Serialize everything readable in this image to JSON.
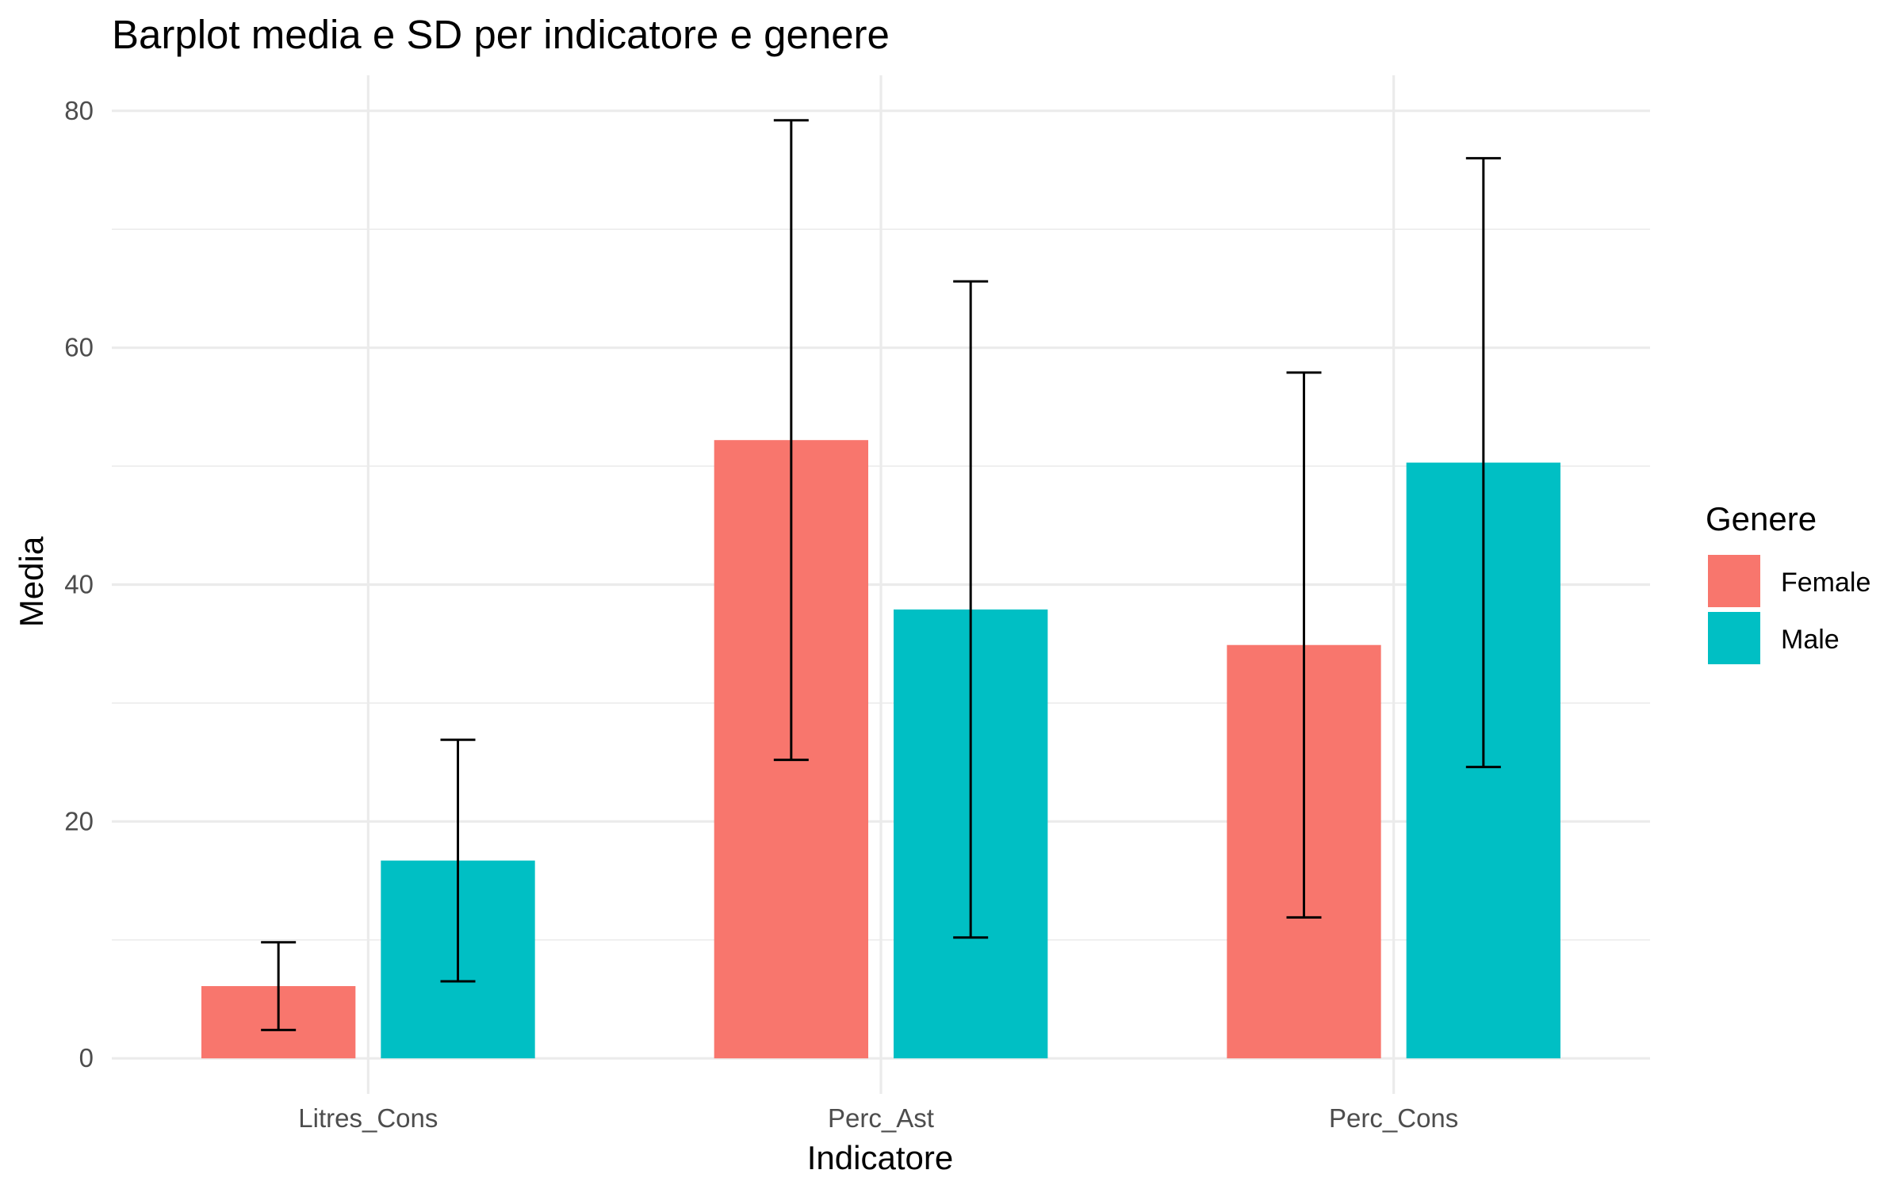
{
  "chart_data": {
    "type": "bar",
    "title": "Barplot media e SD per indicatore e genere",
    "xlabel": "Indicatore",
    "ylabel": "Media",
    "categories": [
      "Litres_Cons",
      "Perc_Ast",
      "Perc_Cons"
    ],
    "ylim": [
      -3,
      83
    ],
    "yticks": [
      0,
      20,
      40,
      60,
      80
    ],
    "yticks_minor": [
      10,
      30,
      50,
      70
    ],
    "grid": true,
    "legend": {
      "title": "Genere",
      "position": "right"
    },
    "series": [
      {
        "name": "Female",
        "color": "#F8766D",
        "values": [
          6.1,
          52.2,
          34.9
        ],
        "sd": [
          3.7,
          27.0,
          23.0
        ]
      },
      {
        "name": "Male",
        "color": "#00BFC4",
        "values": [
          16.7,
          37.9,
          50.3
        ],
        "sd": [
          10.2,
          27.7,
          25.7
        ]
      }
    ]
  }
}
